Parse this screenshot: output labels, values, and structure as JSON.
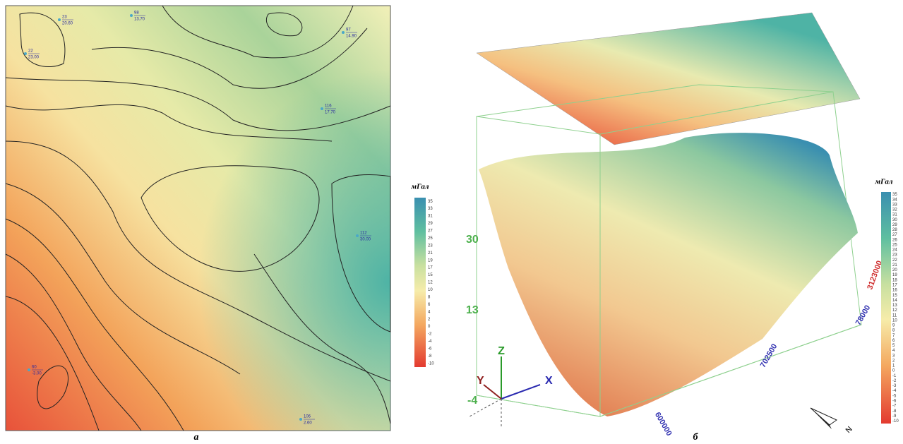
{
  "left_panel": {
    "panel_label": "а",
    "legend": {
      "unit": "мГал",
      "ticks": [
        35,
        33,
        31,
        29,
        27,
        25,
        23,
        21,
        19,
        17,
        15,
        12,
        10,
        8,
        6,
        4,
        2,
        0,
        -2,
        -4,
        -6,
        -8,
        -10
      ]
    },
    "stations": [
      {
        "id": "22",
        "value": "23.00"
      },
      {
        "id": "23",
        "value": "20.60"
      },
      {
        "id": "98",
        "value": "13.70"
      },
      {
        "id": "97",
        "value": "14.90"
      },
      {
        "id": "116",
        "value": "17.70"
      },
      {
        "id": "112",
        "value": "30.00"
      },
      {
        "id": "60",
        "value": "-3.00"
      },
      {
        "id": "106",
        "value": "2.60"
      }
    ]
  },
  "right_panel": {
    "panel_label": "б",
    "legend": {
      "unit": "мГал",
      "ticks": [
        35,
        34,
        33,
        32,
        31,
        30,
        29,
        28,
        27,
        26,
        25,
        24,
        23,
        22,
        21,
        20,
        19,
        18,
        17,
        16,
        15,
        14,
        13,
        12,
        11,
        10,
        9,
        8,
        7,
        6,
        5,
        4,
        3,
        2,
        1,
        0,
        -1,
        -2,
        -3,
        -4,
        -5,
        -6,
        -7,
        -8,
        -9,
        -10
      ]
    },
    "z_ticks": [
      "30",
      "13",
      "-4"
    ],
    "axes": {
      "x": "X",
      "y": "Y",
      "z": "Z"
    },
    "coordinate_labels": [
      "3123000",
      "78000",
      "702500",
      "600000"
    ],
    "north_label": "N"
  }
}
